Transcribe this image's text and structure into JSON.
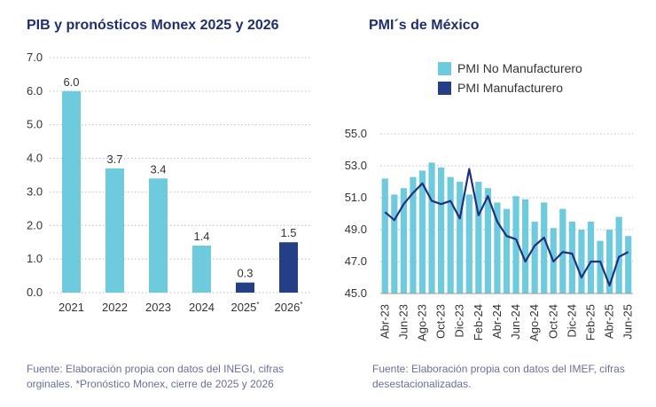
{
  "left_chart": {
    "title": "PIB y pronósticos Monex 2025 y 2026",
    "source": "Fuente: Elaboración propia con datos del INEGI, cifras orginales. *Pronóstico Monex, cierre de 2025 y 2026"
  },
  "right_chart": {
    "title": "PMI´s de México",
    "source": "Fuente: Elaboración propia con datos del IMEF, cifras desestacionalizadas."
  },
  "colors": {
    "light": "#6ecbdd",
    "dark": "#243f86",
    "line": "#1f3080",
    "title": "#1f2f6e",
    "source": "#6b6f9a"
  },
  "chart_data": [
    {
      "type": "bar",
      "title": "PIB y pronósticos Monex 2025 y 2026",
      "categories": [
        "2021",
        "2022",
        "2023",
        "2024",
        "2025*",
        "2026*"
      ],
      "values": [
        6.0,
        3.7,
        3.4,
        1.4,
        0.3,
        1.5
      ],
      "labels": [
        "6.0",
        "3.7",
        "3.4",
        "1.4",
        "0.3",
        "1.5"
      ],
      "forecast": [
        false,
        false,
        false,
        false,
        true,
        true
      ],
      "ylim": [
        0,
        7
      ],
      "yticks": [
        "0.0",
        "1.0",
        "2.0",
        "3.0",
        "4.0",
        "5.0",
        "6.0",
        "7.0"
      ],
      "xlabel": "",
      "ylabel": ""
    },
    {
      "type": "bar+line",
      "title": "PMI´s de México",
      "months": [
        "Abr-23",
        "May-23",
        "Jun-23",
        "Jul-23",
        "Ago-23",
        "Sep-23",
        "Oct-23",
        "Nov-23",
        "Dic-23",
        "Ene-24",
        "Feb-24",
        "Mar-24",
        "Abr-24",
        "May-24",
        "Jun-24",
        "Jul-24",
        "Ago-24",
        "Sep-24",
        "Oct-24",
        "Nov-24",
        "Dic-24",
        "Ene-25",
        "Feb-25",
        "Mar-25",
        "Abr-25",
        "May-25",
        "Jun-25"
      ],
      "xtick_labels": [
        "Abr-23",
        "Jun-23",
        "Ago-23",
        "Oct-23",
        "Dic-23",
        "Feb-24",
        "Abr-24",
        "Jun-24",
        "Ago-24",
        "Oct-24",
        "Dic-24",
        "Feb-25",
        "Abr-25",
        "Jun-25"
      ],
      "series": [
        {
          "name": "PMI No Manufacturero",
          "type": "bar",
          "values": [
            52.2,
            51.2,
            51.6,
            52.3,
            52.7,
            53.2,
            52.9,
            52.3,
            52.0,
            51.2,
            52.0,
            51.6,
            50.7,
            50.3,
            51.1,
            50.9,
            49.5,
            50.7,
            49.1,
            50.3,
            49.5,
            49.0,
            49.5,
            48.3,
            49.0,
            49.8,
            48.6
          ]
        },
        {
          "name": "PMI Manufacturero",
          "type": "line",
          "values": [
            50.1,
            49.6,
            50.6,
            51.3,
            51.9,
            50.8,
            50.6,
            50.8,
            49.7,
            52.8,
            49.9,
            51.1,
            49.5,
            48.6,
            48.4,
            47.0,
            48.0,
            48.5,
            47.0,
            47.6,
            47.5,
            46.0,
            47.0,
            47.0,
            45.5,
            47.3,
            47.6
          ]
        }
      ],
      "ylim": [
        45,
        56
      ],
      "yticks": [
        "45.0",
        "47.0",
        "49.0",
        "51.0",
        "53.0",
        "55.0"
      ],
      "legend_position": "top-left"
    }
  ]
}
